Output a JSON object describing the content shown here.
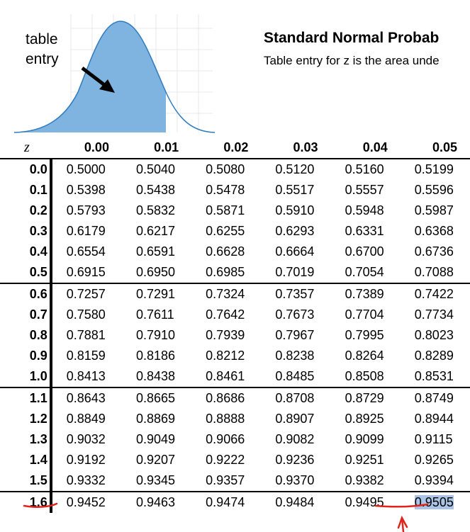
{
  "figure": {
    "entry_label_line1": "table",
    "entry_label_line2": "entry",
    "curve_fill": "#7fb3e0",
    "curve_stroke": "#2f7bbf"
  },
  "header": {
    "title": "Standard Normal Probab",
    "subtitle": "Table entry for z is the area unde"
  },
  "table": {
    "z_header": "z",
    "columns": [
      "0.00",
      "0.01",
      "0.02",
      "0.03",
      "0.04",
      "0.05"
    ],
    "rows": [
      {
        "z": "0.0",
        "values": [
          "0.5000",
          "0.5040",
          "0.5080",
          "0.5120",
          "0.5160",
          "0.5199"
        ]
      },
      {
        "z": "0.1",
        "values": [
          "0.5398",
          "0.5438",
          "0.5478",
          "0.5517",
          "0.5557",
          "0.5596"
        ]
      },
      {
        "z": "0.2",
        "values": [
          "0.5793",
          "0.5832",
          "0.5871",
          "0.5910",
          "0.5948",
          "0.5987"
        ]
      },
      {
        "z": "0.3",
        "values": [
          "0.6179",
          "0.6217",
          "0.6255",
          "0.6293",
          "0.6331",
          "0.6368"
        ]
      },
      {
        "z": "0.4",
        "values": [
          "0.6554",
          "0.6591",
          "0.6628",
          "0.6664",
          "0.6700",
          "0.6736"
        ]
      },
      {
        "z": "0.5",
        "values": [
          "0.6915",
          "0.6950",
          "0.6985",
          "0.7019",
          "0.7054",
          "0.7088"
        ]
      },
      {
        "z": "0.6",
        "values": [
          "0.7257",
          "0.7291",
          "0.7324",
          "0.7357",
          "0.7389",
          "0.7422"
        ]
      },
      {
        "z": "0.7",
        "values": [
          "0.7580",
          "0.7611",
          "0.7642",
          "0.7673",
          "0.7704",
          "0.7734"
        ]
      },
      {
        "z": "0.8",
        "values": [
          "0.7881",
          "0.7910",
          "0.7939",
          "0.7967",
          "0.7995",
          "0.8023"
        ]
      },
      {
        "z": "0.9",
        "values": [
          "0.8159",
          "0.8186",
          "0.8212",
          "0.8238",
          "0.8264",
          "0.8289"
        ]
      },
      {
        "z": "1.0",
        "values": [
          "0.8413",
          "0.8438",
          "0.8461",
          "0.8485",
          "0.8508",
          "0.8531"
        ]
      },
      {
        "z": "1.1",
        "values": [
          "0.8643",
          "0.8665",
          "0.8686",
          "0.8708",
          "0.8729",
          "0.8749"
        ]
      },
      {
        "z": "1.2",
        "values": [
          "0.8849",
          "0.8869",
          "0.8888",
          "0.8907",
          "0.8925",
          "0.8944"
        ]
      },
      {
        "z": "1.3",
        "values": [
          "0.9032",
          "0.9049",
          "0.9066",
          "0.9082",
          "0.9099",
          "0.9115"
        ]
      },
      {
        "z": "1.4",
        "values": [
          "0.9192",
          "0.9207",
          "0.9222",
          "0.9236",
          "0.9251",
          "0.9265"
        ]
      },
      {
        "z": "1.5",
        "values": [
          "0.9332",
          "0.9345",
          "0.9357",
          "0.9370",
          "0.9382",
          "0.9394"
        ]
      },
      {
        "z": "1.6",
        "values": [
          "0.9452",
          "0.9463",
          "0.9474",
          "0.9484",
          "0.9495",
          "0.9505"
        ]
      }
    ],
    "highlighted_cell": {
      "z": "1.6",
      "column": "0.05",
      "value": "0.9505"
    },
    "highlight_color": "#a9c4e6",
    "annotation_color": "#e0231c"
  }
}
